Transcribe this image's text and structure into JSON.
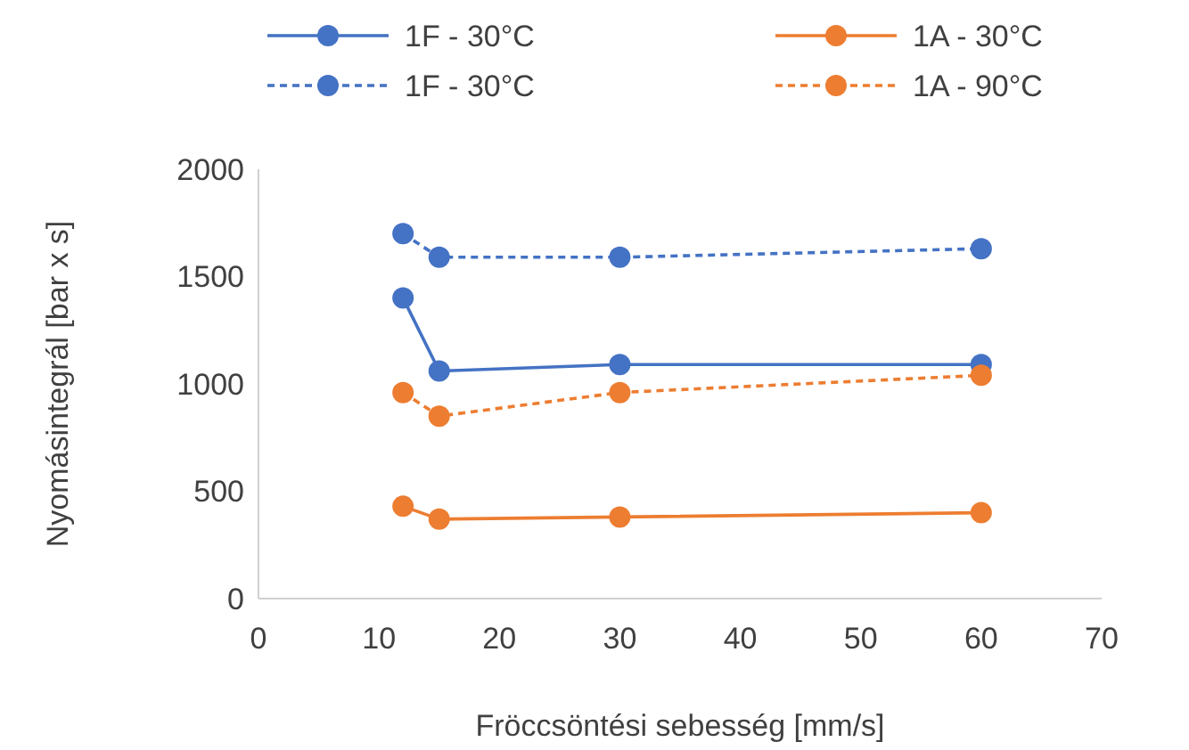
{
  "chart_data": {
    "type": "line",
    "xlabel": "Fröccsöntési sebesség [mm/s]",
    "ylabel": "Nyomásintegrál [bar x s]",
    "x": [
      12,
      15,
      30,
      60
    ],
    "xlim": [
      0,
      70
    ],
    "xticks": [
      0,
      10,
      20,
      30,
      40,
      50,
      60,
      70
    ],
    "ylim": [
      0,
      2000
    ],
    "yticks": [
      0,
      500,
      1000,
      1500,
      2000
    ],
    "grid": false,
    "legend": "top",
    "marker": "circle",
    "series": [
      {
        "name": "1F - 30°C",
        "color": "#4472c4",
        "line_style": "solid",
        "values": [
          1400,
          1060,
          1090,
          1090
        ]
      },
      {
        "name": "1F - 30°C",
        "color": "#4472c4",
        "line_style": "dashed",
        "values": [
          1700,
          1590,
          1590,
          1630
        ]
      },
      {
        "name": "1A - 30°C",
        "color": "#ed7d31",
        "line_style": "solid",
        "values": [
          430,
          370,
          380,
          400
        ]
      },
      {
        "name": "1A - 90°C",
        "color": "#ed7d31",
        "line_style": "dashed",
        "values": [
          960,
          850,
          960,
          1040
        ]
      }
    ]
  }
}
